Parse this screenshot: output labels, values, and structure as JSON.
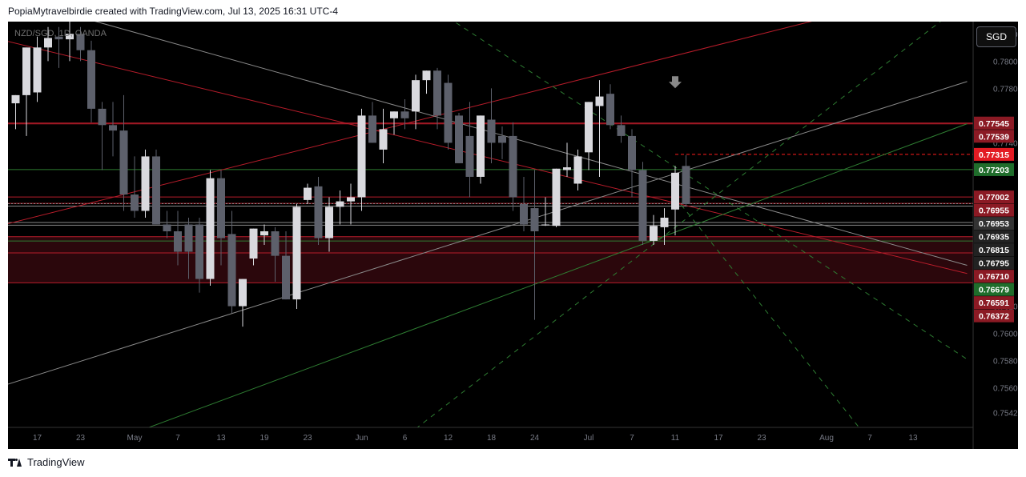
{
  "header": {
    "attribution": "PopiaMytravelbirdie created with TradingView.com, Jul 13, 2025 16:31 UTC-4"
  },
  "footer": {
    "brand": "TradingView"
  },
  "toolbar": {
    "currency": "SGD"
  },
  "chart_data": {
    "type": "candlestick",
    "title": "NZD/SGD, 1D, OANDA",
    "grid": false,
    "y_axis": {
      "range": [
        0.7531,
        0.7829
      ],
      "tick_labels": [
        "0.78200",
        "0.78000",
        "0.77800",
        "0.77400",
        "0.76200",
        "0.76000",
        "0.75800",
        "0.75600",
        "0.75420"
      ],
      "tick_values": [
        0.782,
        0.78,
        0.778,
        0.774,
        0.762,
        0.76,
        0.758,
        0.756,
        0.7542
      ]
    },
    "x_axis": {
      "tick_labels": [
        "17",
        "23",
        "May",
        "7",
        "13",
        "19",
        "23",
        "Jun",
        "6",
        "12",
        "18",
        "24",
        "Jul",
        "7",
        "11",
        "17",
        "23",
        "Aug",
        "7",
        "13"
      ],
      "tick_positions": [
        2,
        6,
        11,
        15,
        19,
        23,
        27,
        32,
        36,
        40,
        44,
        48,
        53,
        57,
        61,
        65,
        69,
        75,
        79,
        83
      ]
    },
    "candles": [
      [
        0.7769,
        0.7775,
        0.775,
        0.7775
      ],
      [
        0.7775,
        0.781,
        0.7745,
        0.781
      ],
      [
        0.7777,
        0.7818,
        0.777,
        0.781
      ],
      [
        0.781,
        0.7825,
        0.78,
        0.7817
      ],
      [
        0.7818,
        0.7825,
        0.7795,
        0.7816
      ],
      [
        0.7816,
        0.7829,
        0.78,
        0.782
      ],
      [
        0.782,
        0.7825,
        0.78,
        0.7808
      ],
      [
        0.7808,
        0.7815,
        0.7755,
        0.7765
      ],
      [
        0.7765,
        0.777,
        0.772,
        0.7753
      ],
      [
        0.7753,
        0.777,
        0.773,
        0.7749
      ],
      [
        0.7749,
        0.7775,
        0.769,
        0.7702
      ],
      [
        0.7702,
        0.773,
        0.7685,
        0.769
      ],
      [
        0.769,
        0.7735,
        0.7685,
        0.773
      ],
      [
        0.773,
        0.7735,
        0.768,
        0.768
      ],
      [
        0.768,
        0.769,
        0.767,
        0.7675
      ],
      [
        0.7675,
        0.769,
        0.765,
        0.766
      ],
      [
        0.768,
        0.7685,
        0.764,
        0.766
      ],
      [
        0.768,
        0.7685,
        0.763,
        0.764
      ],
      [
        0.764,
        0.772,
        0.7635,
        0.7714
      ],
      [
        0.7714,
        0.772,
        0.765,
        0.767
      ],
      [
        0.7673,
        0.769,
        0.7615,
        0.762
      ],
      [
        0.762,
        0.764,
        0.7605,
        0.764
      ],
      [
        0.7655,
        0.7677,
        0.765,
        0.7677
      ],
      [
        0.7672,
        0.768,
        0.7665,
        0.7675
      ],
      [
        0.7675,
        0.7678,
        0.7638,
        0.7657
      ],
      [
        0.7657,
        0.7675,
        0.7625,
        0.7625
      ],
      [
        0.7625,
        0.7695,
        0.7618,
        0.7693
      ],
      [
        0.7698,
        0.771,
        0.7695,
        0.7707
      ],
      [
        0.7708,
        0.7715,
        0.7665,
        0.767
      ],
      [
        0.767,
        0.77,
        0.766,
        0.7693
      ],
      [
        0.7693,
        0.7705,
        0.768,
        0.7697
      ],
      [
        0.7697,
        0.771,
        0.768,
        0.77
      ],
      [
        0.77,
        0.7765,
        0.769,
        0.776
      ],
      [
        0.776,
        0.777,
        0.774,
        0.774
      ],
      [
        0.7735,
        0.7765,
        0.7725,
        0.775
      ],
      [
        0.7758,
        0.7763,
        0.7746,
        0.7763
      ],
      [
        0.7763,
        0.7772,
        0.775,
        0.7758
      ],
      [
        0.7763,
        0.779,
        0.775,
        0.7786
      ],
      [
        0.7786,
        0.7793,
        0.7776,
        0.7793
      ],
      [
        0.7793,
        0.7795,
        0.775,
        0.776
      ],
      [
        0.7784,
        0.779,
        0.7735,
        0.774
      ],
      [
        0.776,
        0.7762,
        0.7725,
        0.7725
      ],
      [
        0.7745,
        0.777,
        0.77,
        0.7715
      ],
      [
        0.7715,
        0.776,
        0.771,
        0.776
      ],
      [
        0.7757,
        0.778,
        0.7725,
        0.774
      ],
      [
        0.7745,
        0.7752,
        0.7728,
        0.774
      ],
      [
        0.7745,
        0.7755,
        0.769,
        0.77
      ],
      [
        0.7695,
        0.7715,
        0.7675,
        0.768
      ],
      [
        0.7692,
        0.772,
        0.761,
        0.7675
      ],
      [
        0.768,
        0.77,
        0.7679,
        0.768
      ],
      [
        0.7679,
        0.7721,
        0.7678,
        0.7721
      ],
      [
        0.772,
        0.774,
        0.7715,
        0.7722
      ],
      [
        0.771,
        0.7735,
        0.7705,
        0.773
      ],
      [
        0.7733,
        0.777,
        0.772,
        0.777
      ],
      [
        0.7767,
        0.7786,
        0.7715,
        0.7774
      ],
      [
        0.7776,
        0.7783,
        0.775,
        0.7753
      ],
      [
        0.7753,
        0.776,
        0.774,
        0.7745
      ],
      [
        0.7745,
        0.775,
        0.77,
        0.772
      ],
      [
        0.772,
        0.7726,
        0.7665,
        0.7668
      ],
      [
        0.7668,
        0.7687,
        0.7665,
        0.7679
      ],
      [
        0.7678,
        0.7692,
        0.7665,
        0.7685
      ],
      [
        0.7691,
        0.7723,
        0.7672,
        0.7718
      ],
      [
        0.7723,
        0.7731,
        0.7693,
        0.7695
      ]
    ],
    "horizontal_levels": [
      {
        "value": 0.77545,
        "color": "#b71c2a",
        "style": "solid"
      },
      {
        "value": 0.77539,
        "color": "#b71c2a",
        "style": "solid"
      },
      {
        "value": 0.77315,
        "color": "#ff1e1e",
        "style": "dashed"
      },
      {
        "value": 0.77203,
        "color": "#2e7d32",
        "style": "solid"
      },
      {
        "value": 0.77002,
        "color": "#b71c2a",
        "style": "solid"
      },
      {
        "value": 0.76955,
        "color": "#b71c2a",
        "style": "solid"
      },
      {
        "value": 0.76953,
        "color": "#888888",
        "style": "dotted"
      },
      {
        "value": 0.76935,
        "color": "#888888",
        "style": "solid"
      },
      {
        "value": 0.76815,
        "color": "#888888",
        "style": "solid"
      },
      {
        "value": 0.76795,
        "color": "#888888",
        "style": "solid"
      },
      {
        "value": 0.7671,
        "color": "#b71c2a",
        "style": "solid"
      },
      {
        "value": 0.76679,
        "color": "#2e7d32",
        "style": "solid"
      },
      {
        "value": 0.76591,
        "color": "#b71c2a",
        "style": "solid"
      },
      {
        "value": 0.76372,
        "color": "#b71c2a",
        "style": "solid"
      }
    ],
    "zone": {
      "from": 0.76372,
      "to": 0.7671,
      "color": "#3a0a10"
    },
    "price_labels": [
      {
        "text": "0.77545",
        "value": 0.77545,
        "bg": "#8b1a24"
      },
      {
        "text": "0.77539",
        "value": 0.77539,
        "bg": "#8b1a24"
      },
      {
        "text": "0.77315",
        "value": 0.77315,
        "bg": "#e31b23"
      },
      {
        "text": "0.77203",
        "value": 0.77203,
        "bg": "#1f6d2b"
      },
      {
        "text": "0.77002",
        "value": 0.77002,
        "bg": "#8b1a24"
      },
      {
        "text": "0.76955",
        "value": 0.76955,
        "bg": "#8b1a24"
      },
      {
        "text": "0.76953",
        "value": 0.76953,
        "bg": "#333333"
      },
      {
        "text": "0.76935",
        "value": 0.76935,
        "bg": "#222222"
      },
      {
        "text": "0.76815",
        "value": 0.76815,
        "bg": "#222222"
      },
      {
        "text": "0.76795",
        "value": 0.76795,
        "bg": "#222222"
      },
      {
        "text": "0.76710",
        "value": 0.7671,
        "bg": "#8b1a24"
      },
      {
        "text": "0.76679",
        "value": 0.76679,
        "bg": "#1f6d2b"
      },
      {
        "text": "0.76591",
        "value": 0.76591,
        "bg": "#8b1a24"
      },
      {
        "text": "0.76372",
        "value": 0.76372,
        "bg": "#8b1a24"
      }
    ],
    "trendlines": [
      {
        "from": [
          -1,
          0.7815
        ],
        "to": [
          88,
          0.7644
        ],
        "color": "#b71c2a",
        "dash": ""
      },
      {
        "from": [
          -1,
          0.768
        ],
        "to": [
          75,
          0.7832
        ],
        "color": "#b71c2a",
        "dash": ""
      },
      {
        "from": [
          -1,
          0.7562
        ],
        "to": [
          88,
          0.7785
        ],
        "color": "#8a8a8a",
        "dash": ""
      },
      {
        "from": [
          7,
          0.783
        ],
        "to": [
          88,
          0.765
        ],
        "color": "#8a8a8a",
        "dash": ""
      },
      {
        "from": [
          12,
          0.753
        ],
        "to": [
          88,
          0.7754
        ],
        "color": "#2e7d32",
        "dash": ""
      },
      {
        "from": [
          40,
          0.7832
        ],
        "to": [
          88,
          0.7581
        ],
        "color": "#2e7d32",
        "dash": "6 6"
      },
      {
        "from": [
          37,
          0.753
        ],
        "to": [
          86,
          0.7832
        ],
        "color": "#2e7d32",
        "dash": "6 6"
      },
      {
        "from": [
          61,
          0.77
        ],
        "to": [
          78,
          0.7531
        ],
        "color": "#2e7d32",
        "dash": "6 6"
      }
    ],
    "signal_arrow": {
      "index": 61,
      "value": 0.7783,
      "direction": "down",
      "color": "#888888"
    },
    "colors": {
      "up": "#d9d9de",
      "down": "#5d606b"
    }
  }
}
